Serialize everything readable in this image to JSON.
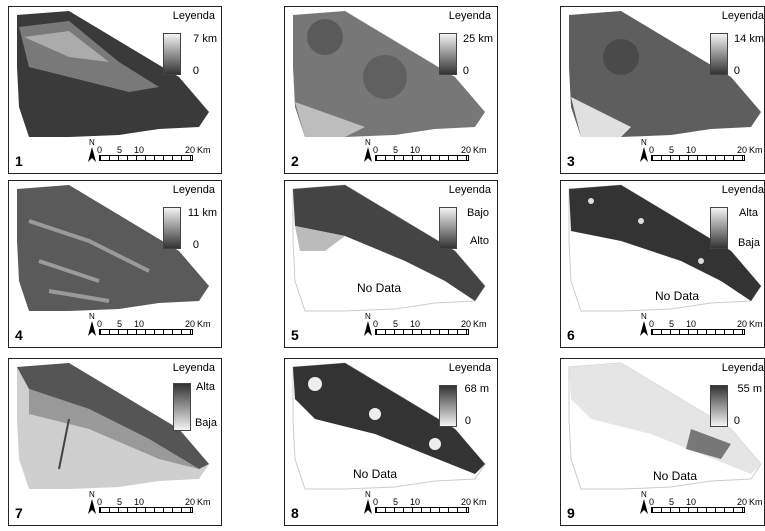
{
  "colors": {
    "border": "#222222",
    "dark": "#333333",
    "mid": "#777777",
    "light": "#d6d6d6",
    "nodata": "#ffffff"
  },
  "scale_labels": {
    "t0": "0",
    "t5": "5",
    "t10": "10",
    "t20": "20",
    "unit": "Km",
    "north": "N"
  },
  "panels": [
    {
      "num": "1",
      "legend_title": "Leyenda",
      "max": "7 km",
      "min": "0",
      "nodata": ""
    },
    {
      "num": "2",
      "legend_title": "Leyenda",
      "max": "25 km",
      "min": "0",
      "nodata": ""
    },
    {
      "num": "3",
      "legend_title": "Leyenda",
      "max": "14 km",
      "min": "0",
      "nodata": ""
    },
    {
      "num": "4",
      "legend_title": "Leyenda",
      "max": "11 km",
      "min": "0",
      "nodata": ""
    },
    {
      "num": "5",
      "legend_title": "Leyenda",
      "max": "Bajo",
      "min": "Alto",
      "nodata": "No Data"
    },
    {
      "num": "6",
      "legend_title": "Leyenda",
      "max": "Alta",
      "min": "Baja",
      "nodata": "No Data"
    },
    {
      "num": "7",
      "legend_title": "Leyenda",
      "max": "Alta",
      "min": "Baja",
      "nodata": ""
    },
    {
      "num": "8",
      "legend_title": "Leyenda",
      "max": "68 m",
      "min": "0",
      "nodata": "No Data"
    },
    {
      "num": "9",
      "legend_title": "Leyenda",
      "max": "55 m",
      "min": "0",
      "nodata": "No Data"
    }
  ]
}
